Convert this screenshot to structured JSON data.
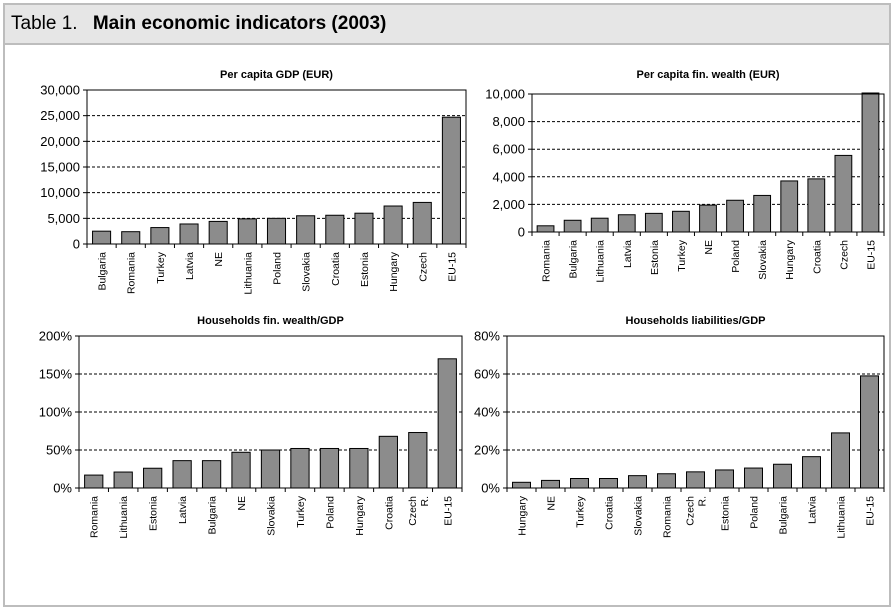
{
  "header": {
    "label": "Table 1.",
    "title": "Main economic indicators (2003)"
  },
  "colors": {
    "bar_fill": "#8c8c8c",
    "bar_stroke": "#000000",
    "frame": "#bdbdbd",
    "title_bg": "#e6e6e6"
  },
  "chart_data": [
    {
      "type": "bar",
      "title": "Per capita GDP (EUR)",
      "categories": [
        "Bulgaria",
        "Romania",
        "Turkey",
        "Latvia",
        "NE",
        "Lithuania",
        "Poland",
        "Slovakia",
        "Croatia",
        "Estonia",
        "Hungary",
        "Czech",
        "EU-15"
      ],
      "values": [
        2500,
        2400,
        3200,
        3900,
        4400,
        4900,
        5000,
        5500,
        5600,
        6000,
        7400,
        8100,
        24700
      ],
      "ylim": [
        0,
        30000
      ],
      "yticks": [
        "0",
        "5,000",
        "10,000",
        "15,000",
        "20,000",
        "25,000",
        "30,000"
      ],
      "grid": true
    },
    {
      "type": "bar",
      "title": "Per capita fin. wealth (EUR)",
      "categories": [
        "Romania",
        "Bulgaria",
        "Lithuania",
        "Latvia",
        "Estonia",
        "Turkey",
        "NE",
        "Poland",
        "Slovakia",
        "Hungary",
        "Croatia",
        "Czech",
        "EU-15"
      ],
      "values": [
        450,
        850,
        1000,
        1250,
        1350,
        1500,
        1950,
        2300,
        2650,
        3700,
        3850,
        5550,
        10500
      ],
      "ylim": [
        0,
        10000
      ],
      "yticks": [
        "0",
        "2,000",
        "4,000",
        "6,000",
        "8,000",
        "10,000"
      ],
      "grid": true
    },
    {
      "type": "bar",
      "title": "Households fin. wealth/GDP",
      "categories": [
        "Romania",
        "Lithuania",
        "Estonia",
        "Latvia",
        "Bulgaria",
        "NE",
        "Slovakia",
        "Turkey",
        "Poland",
        "Hungary",
        "Croatia",
        "Czech R.",
        "EU-15"
      ],
      "values": [
        17,
        21,
        26,
        36,
        36,
        47,
        50,
        52,
        52,
        52,
        68,
        73,
        170
      ],
      "ylim": [
        0,
        200
      ],
      "yticks": [
        "0%",
        "50%",
        "100%",
        "150%",
        "200%"
      ],
      "grid": true
    },
    {
      "type": "bar",
      "title": "Households liabilities/GDP",
      "categories": [
        "Hungary",
        "NE",
        "Turkey",
        "Croatia",
        "Slovakia",
        "Romania",
        "Czech R.",
        "Estonia",
        "Poland",
        "Bulgaria",
        "Latvia",
        "Lithuania",
        "EU-15"
      ],
      "values": [
        3,
        4,
        5,
        5,
        6.5,
        7.5,
        8.5,
        9.5,
        10.5,
        12.5,
        16.5,
        29,
        59
      ],
      "ylim": [
        0,
        80
      ],
      "yticks": [
        "0%",
        "20%",
        "40%",
        "60%",
        "80%"
      ],
      "grid": true
    }
  ]
}
